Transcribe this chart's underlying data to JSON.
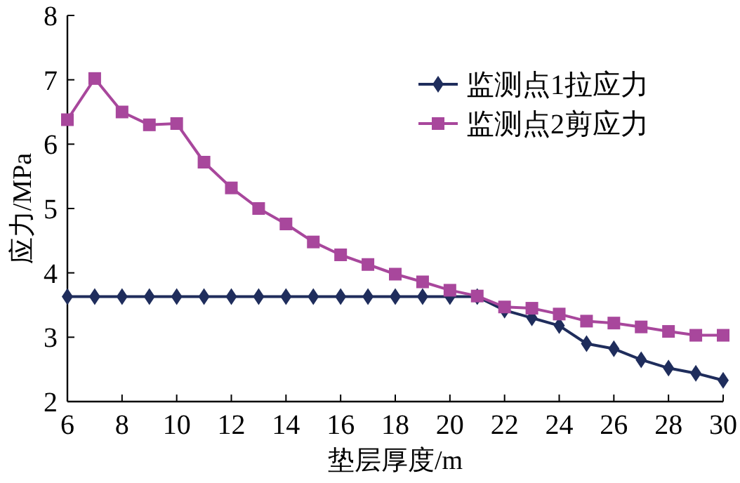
{
  "chart_data": {
    "type": "line",
    "xlabel": "垫层厚度/m",
    "ylabel": "应力/MPa",
    "x": [
      6,
      7,
      8,
      9,
      10,
      11,
      12,
      13,
      14,
      15,
      16,
      17,
      18,
      19,
      20,
      21,
      22,
      23,
      24,
      25,
      26,
      27,
      28,
      29,
      30
    ],
    "series": [
      {
        "name": "监测点1拉应力",
        "color": "#1f2d5c",
        "marker": "diamond",
        "values": [
          3.63,
          3.63,
          3.63,
          3.63,
          3.63,
          3.63,
          3.63,
          3.63,
          3.63,
          3.63,
          3.63,
          3.63,
          3.63,
          3.63,
          3.63,
          3.63,
          3.42,
          3.3,
          3.18,
          2.9,
          2.82,
          2.65,
          2.52,
          2.44,
          2.33
        ]
      },
      {
        "name": "监测点2剪应力",
        "color": "#a8479c",
        "marker": "square",
        "values": [
          6.38,
          7.02,
          6.5,
          6.3,
          6.32,
          5.72,
          5.32,
          5.0,
          4.76,
          4.48,
          4.28,
          4.13,
          3.98,
          3.86,
          3.73,
          3.64,
          3.47,
          3.45,
          3.36,
          3.25,
          3.22,
          3.16,
          3.09,
          3.03,
          3.03
        ]
      }
    ],
    "xlim": [
      6,
      30
    ],
    "ylim": [
      2,
      8
    ],
    "xticks": [
      6,
      8,
      10,
      12,
      14,
      16,
      18,
      20,
      22,
      24,
      26,
      28,
      30
    ],
    "yticks": [
      2,
      3,
      4,
      5,
      6,
      7,
      8
    ],
    "legend": "top right",
    "line_style": "solid"
  }
}
